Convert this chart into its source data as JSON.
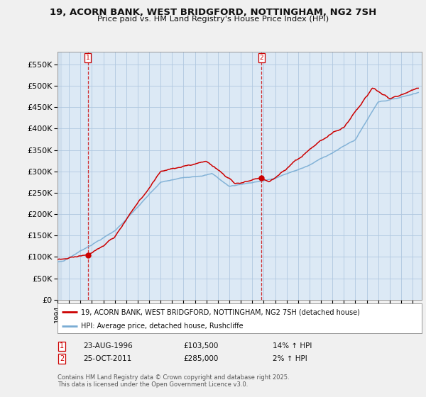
{
  "title1": "19, ACORN BANK, WEST BRIDGFORD, NOTTINGHAM, NG2 7SH",
  "title2": "Price paid vs. HM Land Registry's House Price Index (HPI)",
  "legend_label_red": "19, ACORN BANK, WEST BRIDGFORD, NOTTINGHAM, NG2 7SH (detached house)",
  "legend_label_blue": "HPI: Average price, detached house, Rushcliffe",
  "annotation1_date": "23-AUG-1996",
  "annotation1_price": "£103,500",
  "annotation1_hpi": "14% ↑ HPI",
  "annotation2_date": "25-OCT-2011",
  "annotation2_price": "£285,000",
  "annotation2_hpi": "2% ↑ HPI",
  "footnote": "Contains HM Land Registry data © Crown copyright and database right 2025.\nThis data is licensed under the Open Government Licence v3.0.",
  "ylim_min": 0,
  "ylim_max": 580000,
  "yticks": [
    0,
    50000,
    100000,
    150000,
    200000,
    250000,
    300000,
    350000,
    400000,
    450000,
    500000,
    550000
  ],
  "ytick_labels": [
    "£0",
    "£50K",
    "£100K",
    "£150K",
    "£200K",
    "£250K",
    "£300K",
    "£350K",
    "£400K",
    "£450K",
    "£500K",
    "£550K"
  ],
  "bg_color": "#f0f0f0",
  "plot_bg_color": "#dce9f5",
  "red_color": "#cc0000",
  "blue_color": "#7aadd4",
  "marker1_year": 1996.64,
  "marker1_value": 103500,
  "marker2_year": 2011.81,
  "marker2_value": 285000,
  "xmin": 1994.0,
  "xmax": 2025.8
}
